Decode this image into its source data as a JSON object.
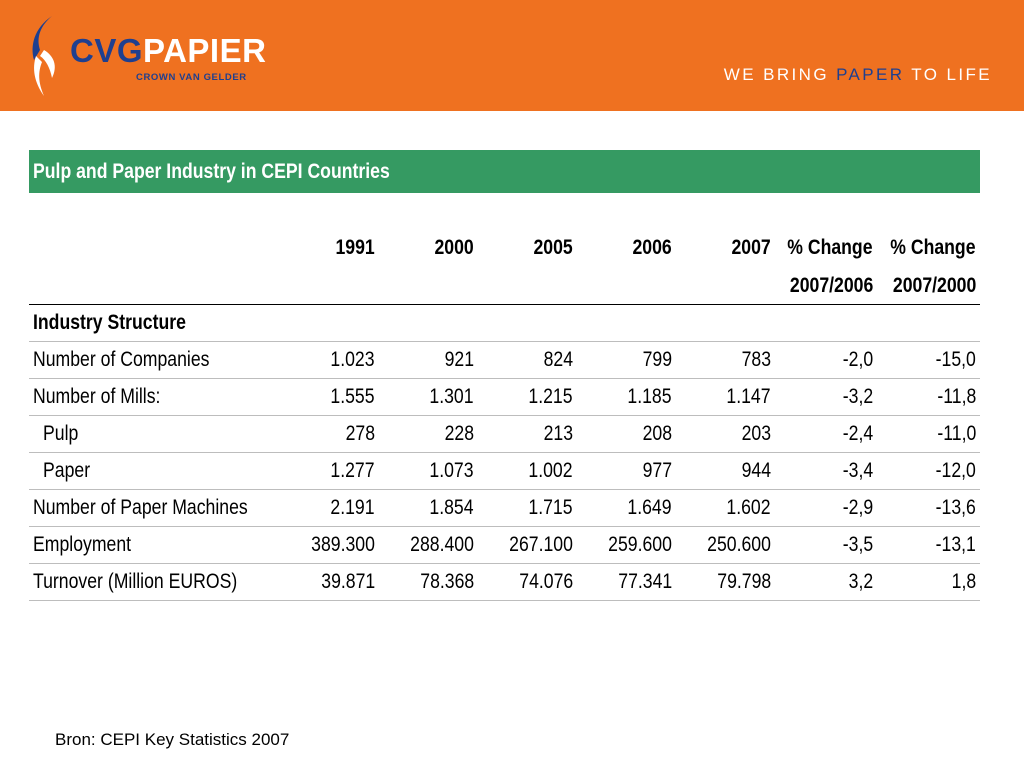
{
  "header": {
    "logo_cvg": "CVG",
    "logo_papier": "PAPIER",
    "logo_sub": "CROWN VAN GELDER",
    "tagline_pre": "WE BRING ",
    "tagline_hl": "PAPER",
    "tagline_post": " TO LIFE",
    "colors": {
      "bar": "#ef7120",
      "brand_blue": "#1f3f8f"
    }
  },
  "table": {
    "title": "Pulp and Paper Industry in CEPI Countries",
    "columns": [
      "1991",
      "2000",
      "2005",
      "2006",
      "2007",
      "% Change",
      "% Change"
    ],
    "columns_sub": [
      "",
      "",
      "",
      "",
      "",
      "2007/2006",
      "2007/2000"
    ],
    "section": "Industry Structure",
    "rows": [
      {
        "label": "Number of Companies",
        "values": [
          "1.023",
          "921",
          "824",
          "799",
          "783",
          "-2,0",
          "-15,0"
        ]
      },
      {
        "label": "Number of Mills:",
        "values": [
          "1.555",
          "1.301",
          "1.215",
          "1.185",
          "1.147",
          "-3,2",
          "-11,8"
        ]
      },
      {
        "label": "Pulp",
        "values": [
          "278",
          "228",
          "213",
          "208",
          "203",
          "-2,4",
          "-11,0"
        ]
      },
      {
        "label": "Paper",
        "values": [
          "1.277",
          "1.073",
          "1.002",
          "977",
          "944",
          "-3,4",
          "-12,0"
        ]
      },
      {
        "label": "Number of Paper Machines",
        "values": [
          "2.191",
          "1.854",
          "1.715",
          "1.649",
          "1.602",
          "-2,9",
          "-13,6"
        ]
      },
      {
        "label": "Employment",
        "values": [
          "389.300",
          "288.400",
          "267.100",
          "259.600",
          "250.600",
          "-3,5",
          "-13,1"
        ]
      },
      {
        "label": "Turnover (Million EUROS)",
        "values": [
          "39.871",
          "78.368",
          "74.076",
          "77.341",
          "79.798",
          "3,2",
          "1,8"
        ]
      }
    ],
    "title_bar_color": "#359a62"
  },
  "footer": {
    "source": "Bron: CEPI Key Statistics 2007"
  }
}
